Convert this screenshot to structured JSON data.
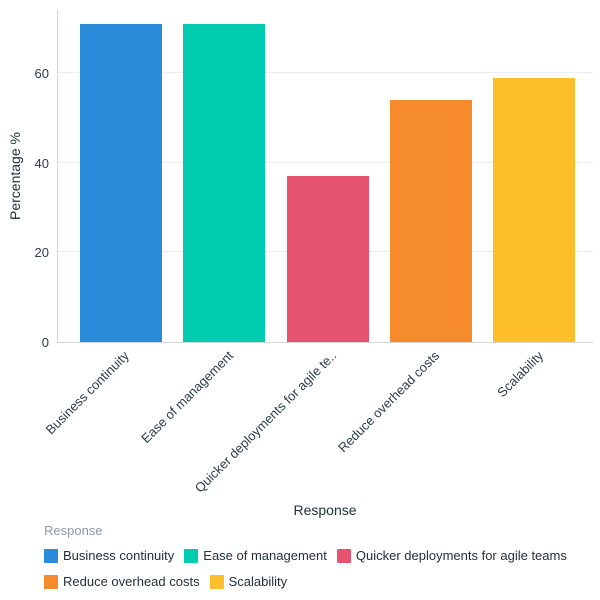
{
  "chart_data": {
    "type": "bar",
    "title": "",
    "xlabel": "Response",
    "ylabel": "Percentage %",
    "categories": [
      "Business continuity",
      "Ease of management",
      "Quicker deployments for agile teams",
      "Reduce overhead costs",
      "Scalability"
    ],
    "x_tick_labels": [
      "Business continuity",
      "Ease of management",
      "Quicker deployments for agile te..",
      "Reduce overhead costs",
      "Scalability"
    ],
    "values": [
      71,
      71,
      37,
      54,
      59
    ],
    "bar_colors": [
      "#2b8bdb",
      "#00ccb2",
      "#e5536f",
      "#f68b2d",
      "#fcbf29"
    ],
    "yticks": [
      0,
      20,
      40,
      60
    ],
    "ylim": [
      0,
      74.3
    ],
    "grid": "horizontal",
    "legend": {
      "title": "Response",
      "position": "bottom-left",
      "entries": [
        {
          "label": "Business continuity",
          "color": "#2b8bdb"
        },
        {
          "label": "Ease of management",
          "color": "#00ccb2"
        },
        {
          "label": "Quicker deployments for agile teams",
          "color": "#e5536f"
        },
        {
          "label": "Reduce overhead costs",
          "color": "#f68b2d"
        },
        {
          "label": "Scalability",
          "color": "#fcbf29"
        }
      ]
    },
    "style": {
      "text_color": "#22323c",
      "muted_text_color": "#8f9ba1",
      "gridline_color": "#ebedee",
      "axis_line_color": "#d5d7d9"
    }
  }
}
